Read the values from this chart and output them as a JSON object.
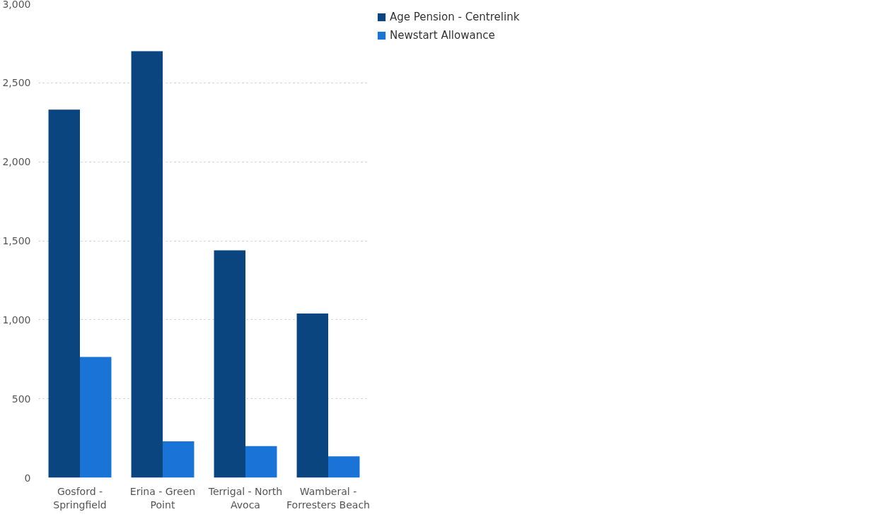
{
  "chart_data": {
    "type": "bar",
    "categories": [
      "Gosford - Springfield",
      "Erina - Green Point",
      "Terrigal - North Avoca",
      "Wamberal - Forresters Beach"
    ],
    "series": [
      {
        "name": "Age Pension - Centrelink",
        "color": "#0b4580",
        "values": [
          2330,
          2700,
          1440,
          1040
        ]
      },
      {
        "name": "Newstart Allowance",
        "color": "#1a73d6",
        "values": [
          765,
          230,
          200,
          135
        ]
      }
    ],
    "ylim": [
      0,
      3000
    ],
    "yticks": [
      {
        "value": 0,
        "label": "0"
      },
      {
        "value": 500,
        "label": "500"
      },
      {
        "value": 1000,
        "label": "1,000"
      },
      {
        "value": 1500,
        "label": "1,500"
      },
      {
        "value": 2000,
        "label": "2,000"
      },
      {
        "value": 2500,
        "label": "2,500"
      },
      {
        "value": 3000,
        "label": "3,000"
      }
    ],
    "grid": "y",
    "legend": "top right"
  }
}
